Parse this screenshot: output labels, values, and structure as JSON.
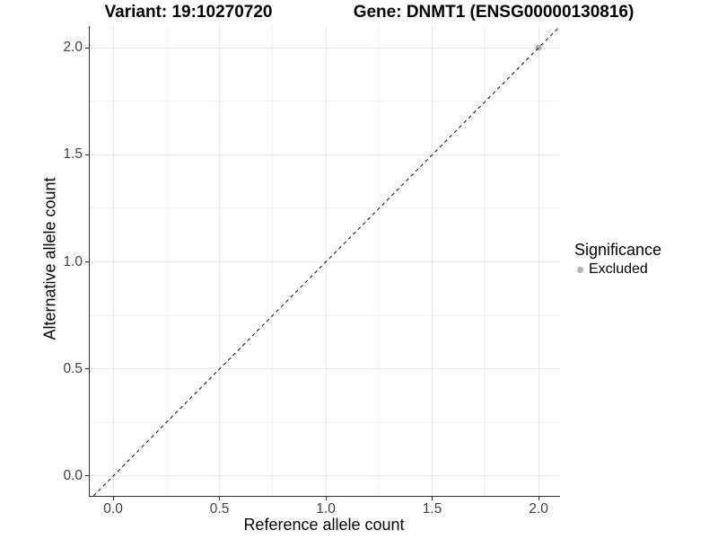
{
  "chart_data": {
    "type": "scatter",
    "titles": {
      "left": "Variant: 19:10270720",
      "right": "Gene: DNMT1 (ENSG00000130816)"
    },
    "xlabel": "Reference allele count",
    "ylabel": "Alternative allele count",
    "xlim": [
      -0.11,
      2.101
    ],
    "ylim": [
      -0.0924,
      2.1013
    ],
    "x_ticks": {
      "values": [
        0,
        0.5,
        1,
        1.5,
        2
      ],
      "labels": [
        "0.0",
        "0.5",
        "1.0",
        "1.5",
        "2.0"
      ]
    },
    "y_ticks": {
      "values": [
        0,
        0.5,
        1,
        1.5,
        2
      ],
      "labels": [
        "0.0",
        "0.5",
        "1.0",
        "1.5",
        "2.0"
      ]
    },
    "x_minor_ticks": [
      0.25,
      0.75,
      1.25,
      1.75
    ],
    "y_minor_ticks": [
      0.25,
      0.75,
      1.25,
      1.75
    ],
    "grid": "major+minor",
    "points": [
      {
        "x": 2.0,
        "y": 2.0,
        "series": "Excluded"
      }
    ],
    "reference_line": {
      "type": "identity",
      "slope": 1,
      "intercept": 0,
      "style": "dashed",
      "color": "#1f1f1f"
    },
    "legend": {
      "title": "Significance",
      "position": "right",
      "items": [
        {
          "label": "Excluded",
          "marker": "circle",
          "color": "#b0b0b0"
        }
      ]
    },
    "colors": {
      "point_excluded": "#b0b0b0",
      "axis_line": "#2e2e2e",
      "tick_text": "#404040",
      "grid_major": "#e7e7e7",
      "grid_minor": "#f3f3f3",
      "title_text": "#000000"
    }
  }
}
